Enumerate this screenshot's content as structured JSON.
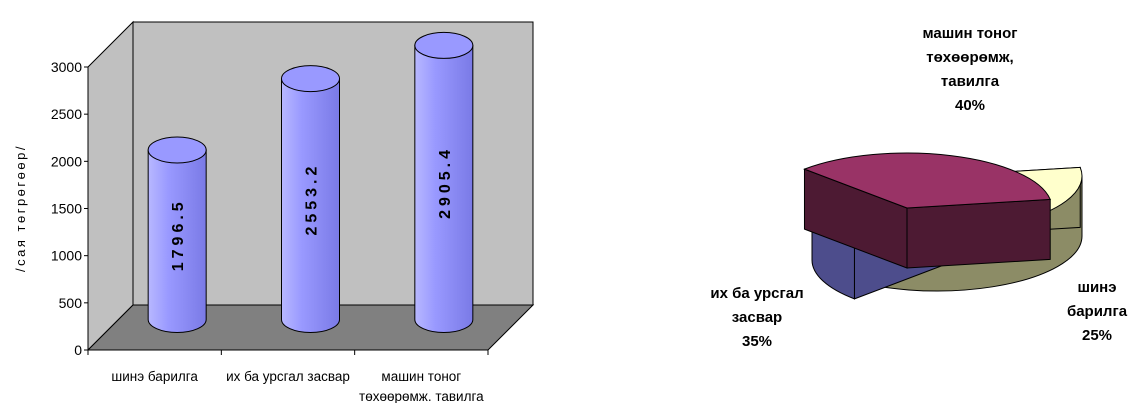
{
  "chart_data": [
    {
      "type": "bar",
      "style": "3d-cylinder",
      "title": "",
      "xlabel": "",
      "ylabel": "/сая төгрөгөөр/",
      "categories": [
        [
          "шинэ барилга"
        ],
        [
          "их ба урсгал засвар"
        ],
        [
          "машин тоног",
          "төхөөрөмж. тавилга"
        ]
      ],
      "values": [
        1796.5,
        2553.2,
        2905.4
      ],
      "data_labels": [
        "1796.5",
        "2553.2",
        "2905.4"
      ],
      "ylim": [
        0,
        3000
      ],
      "yticks": [
        0,
        500,
        1000,
        1500,
        2000,
        2500,
        3000
      ],
      "grid": false,
      "colors": {
        "bar": "#9999ff",
        "wall": "#c0c0c0",
        "floor": "#808080"
      }
    },
    {
      "type": "pie",
      "style": "3d-exploded",
      "title": "",
      "slices": [
        {
          "label_lines": [
            "машин тоног",
            "төхөөрөмж,",
            "тавилга"
          ],
          "percent_label": "40%",
          "value": 40,
          "color": "#ffffcc",
          "side_color": "#8c8c66"
        },
        {
          "label_lines": [
            "шинэ",
            "барилга"
          ],
          "percent_label": "25%",
          "value": 25,
          "color": "#9999ff",
          "side_color": "#4d4d8c"
        },
        {
          "label_lines": [
            "их ба урсгал",
            "засвар"
          ],
          "percent_label": "35%",
          "value": 35,
          "color": "#993366",
          "side_color": "#4d1a33"
        }
      ]
    }
  ]
}
